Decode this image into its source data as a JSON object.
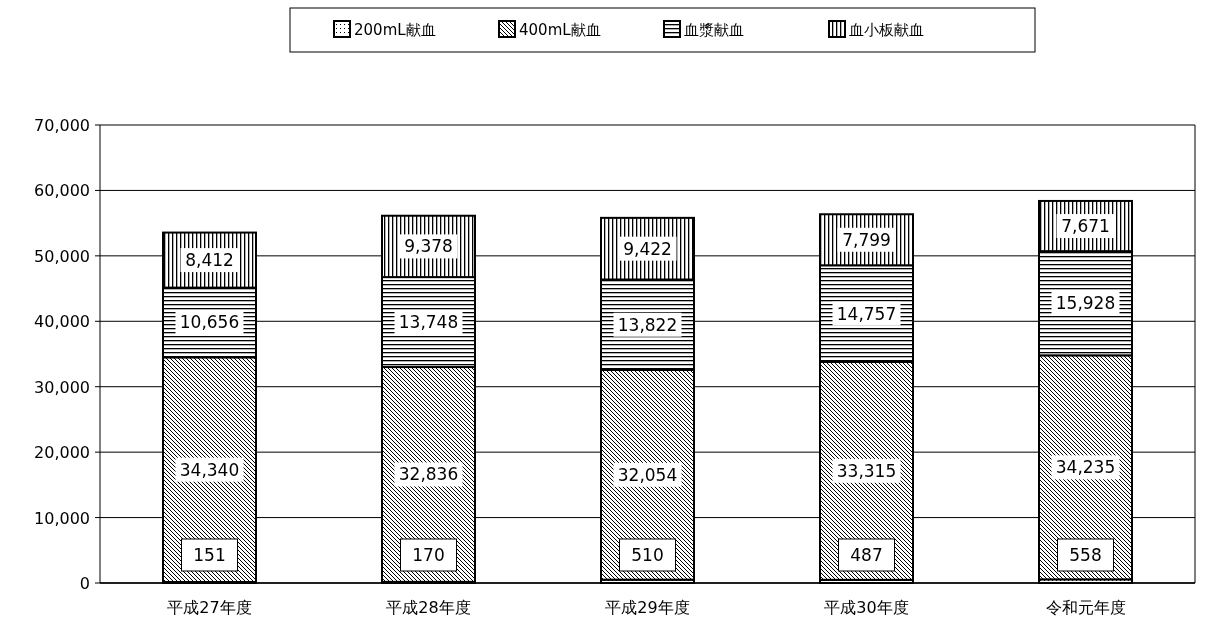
{
  "chart_data": {
    "type": "bar",
    "stacked": true,
    "grid": "y",
    "legend": "top",
    "categories": [
      "平成27年度",
      "平成28年度",
      "平成29年度",
      "平成30年度",
      "令和元年度"
    ],
    "series": [
      {
        "name": "200mL献血",
        "color": "#000000",
        "values": [
          151,
          170,
          510,
          487,
          558
        ],
        "value_labels": [
          "151",
          "170",
          "510",
          "487",
          "558"
        ]
      },
      {
        "name": "400mL献血",
        "color": "#000000",
        "values": [
          34340,
          32836,
          32054,
          33315,
          34235
        ],
        "value_labels": [
          "34,340",
          "32,836",
          "32,054",
          "33,315",
          "34,235"
        ]
      },
      {
        "name": "血漿献血",
        "color": "#000000",
        "values": [
          10656,
          13748,
          13822,
          14757,
          15928
        ],
        "value_labels": [
          "10,656",
          "13,748",
          "13,822",
          "14,757",
          "15,928"
        ]
      },
      {
        "name": "血小板献血",
        "color": "#000000",
        "values": [
          8412,
          9378,
          9422,
          7799,
          7671
        ],
        "value_labels": [
          "8,412",
          "9,378",
          "9,422",
          "7,799",
          "7,671"
        ]
      }
    ],
    "ylim": [
      0,
      70000
    ],
    "yticks": [
      {
        "value": 0,
        "label": "0"
      },
      {
        "value": 10000,
        "label": "10,000"
      },
      {
        "value": 20000,
        "label": "20,000"
      },
      {
        "value": 30000,
        "label": "30,000"
      },
      {
        "value": 40000,
        "label": "40,000"
      },
      {
        "value": 50000,
        "label": "50,000"
      },
      {
        "value": 60000,
        "label": "60,000"
      },
      {
        "value": 70000,
        "label": "70,000"
      }
    ]
  }
}
